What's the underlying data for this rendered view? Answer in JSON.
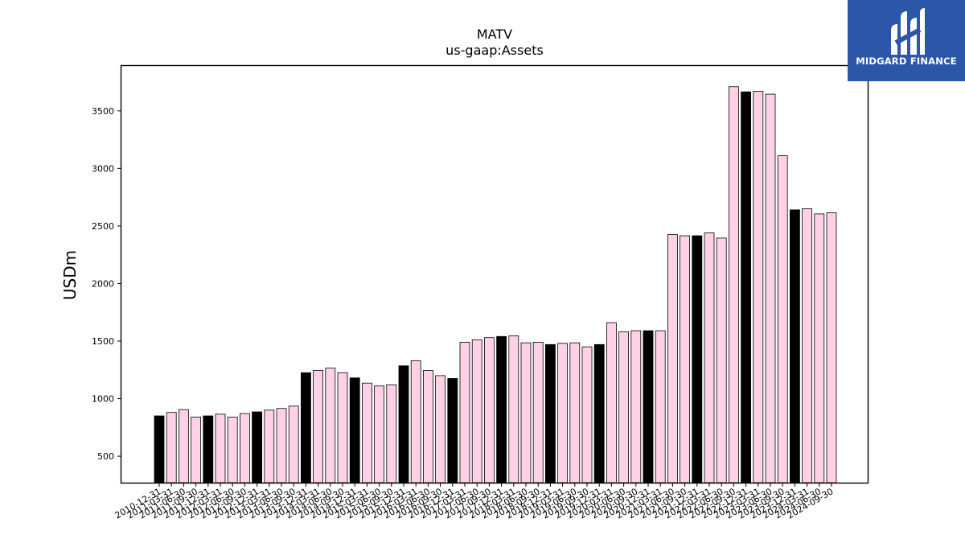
{
  "brand": {
    "name": "MIDGARD FINANCE",
    "bg_color": "#2c56a8"
  },
  "chart_data": {
    "type": "bar",
    "title": "MATV",
    "subtitle": "us-gaap:Assets",
    "xlabel": "",
    "ylabel": "USDm",
    "ylim": [
      270,
      3890
    ],
    "yticks": [
      500,
      1000,
      1500,
      2000,
      2500,
      3000,
      3500
    ],
    "grid": false,
    "colors": {
      "annual": "#000000",
      "quarterly": "#ffd0e6",
      "edge": "#000000"
    },
    "categories": [
      "2010-12-31",
      "2011-03-31",
      "2011-06-30",
      "2011-09-30",
      "2011-12-31",
      "2012-03-31",
      "2012-06-30",
      "2012-09-30",
      "2012-12-31",
      "2013-03-31",
      "2013-06-30",
      "2013-09-30",
      "2013-12-31",
      "2014-03-31",
      "2014-06-30",
      "2014-09-30",
      "2014-12-31",
      "2015-03-31",
      "2015-06-30",
      "2015-09-30",
      "2015-12-31",
      "2016-03-31",
      "2016-06-30",
      "2016-09-30",
      "2016-12-31",
      "2017-03-31",
      "2017-06-30",
      "2017-09-30",
      "2017-12-31",
      "2018-03-31",
      "2018-06-30",
      "2018-09-30",
      "2018-12-31",
      "2019-03-31",
      "2019-06-30",
      "2019-09-30",
      "2019-12-31",
      "2020-03-31",
      "2020-06-30",
      "2020-09-30",
      "2020-12-31",
      "2021-03-31",
      "2021-06-30",
      "2021-09-30",
      "2021-12-31",
      "2022-03-31",
      "2022-06-30",
      "2022-09-30",
      "2022-12-31",
      "2023-03-31",
      "2023-06-30",
      "2023-09-30",
      "2023-12-31",
      "2024-03-31",
      "2024-06-30",
      "2024-09-30"
    ],
    "values": [
      850,
      880,
      905,
      840,
      850,
      865,
      840,
      870,
      885,
      900,
      915,
      935,
      1225,
      1245,
      1265,
      1225,
      1180,
      1135,
      1110,
      1120,
      1285,
      1330,
      1245,
      1200,
      1175,
      1490,
      1510,
      1530,
      1540,
      1545,
      1485,
      1490,
      1470,
      1480,
      1485,
      1450,
      1470,
      1660,
      1580,
      1590,
      1590,
      1590,
      2425,
      2415,
      2415,
      2440,
      2395,
      3710,
      3665,
      3670,
      3645,
      3110,
      2640,
      2650,
      2605,
      2615
    ],
    "annual": [
      true,
      false,
      false,
      false,
      true,
      false,
      false,
      false,
      true,
      false,
      false,
      false,
      true,
      false,
      false,
      false,
      true,
      false,
      false,
      false,
      true,
      false,
      false,
      false,
      true,
      false,
      false,
      false,
      true,
      false,
      false,
      false,
      true,
      false,
      false,
      false,
      true,
      false,
      false,
      false,
      true,
      false,
      false,
      false,
      true,
      false,
      false,
      false,
      true,
      false,
      false,
      false,
      true,
      false,
      false,
      false
    ]
  }
}
